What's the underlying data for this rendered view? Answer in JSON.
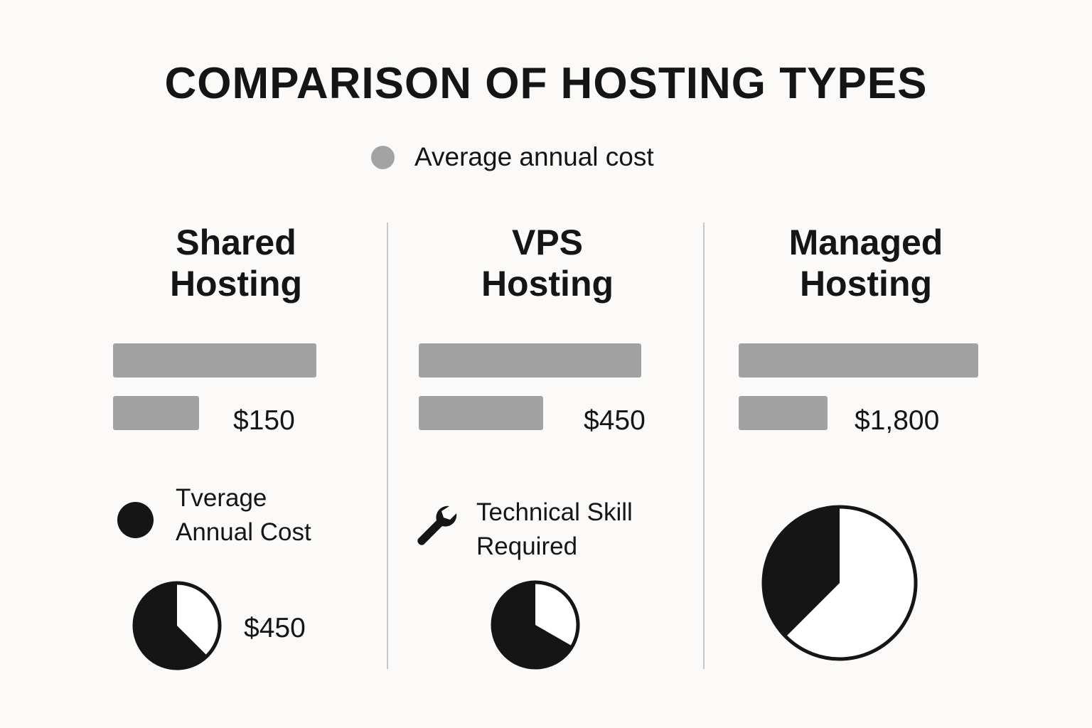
{
  "chart_data": {
    "type": "bar",
    "title": "COMPARISON OF HOSTING TYPES",
    "legend": [
      {
        "label": "Average annual cost",
        "color": "#a3a3a3"
      }
    ],
    "legend_position": "top-center",
    "categories": [
      "Shared Hosting",
      "VPS Hosting",
      "Managed Hosting"
    ],
    "columns": [
      {
        "heading_line1": "Shared",
        "heading_line2": "Hosting",
        "bar_top_pct": 85,
        "bar_bottom_pct": 36,
        "value_label": "$150",
        "item_label_line1": "Tverage",
        "item_label_line2": "Annual Cost",
        "item_icon": "filled-circle-icon",
        "pie_fraction": 0.625,
        "pie_label": "$450"
      },
      {
        "heading_line1": "VPS",
        "heading_line2": "Hosting",
        "bar_top_pct": 93,
        "bar_bottom_pct": 52,
        "value_label": "$450",
        "item_label_line1": "Technical Skill",
        "item_label_line2": "Required",
        "item_icon": "wrench-icon",
        "pie_fraction": 0.667
      },
      {
        "heading_line1": "Managed",
        "heading_line2": "Hosting",
        "bar_top_pct": 100,
        "bar_bottom_pct": 37,
        "value_label": "$1,800",
        "pie_fraction": 0.375
      }
    ]
  }
}
